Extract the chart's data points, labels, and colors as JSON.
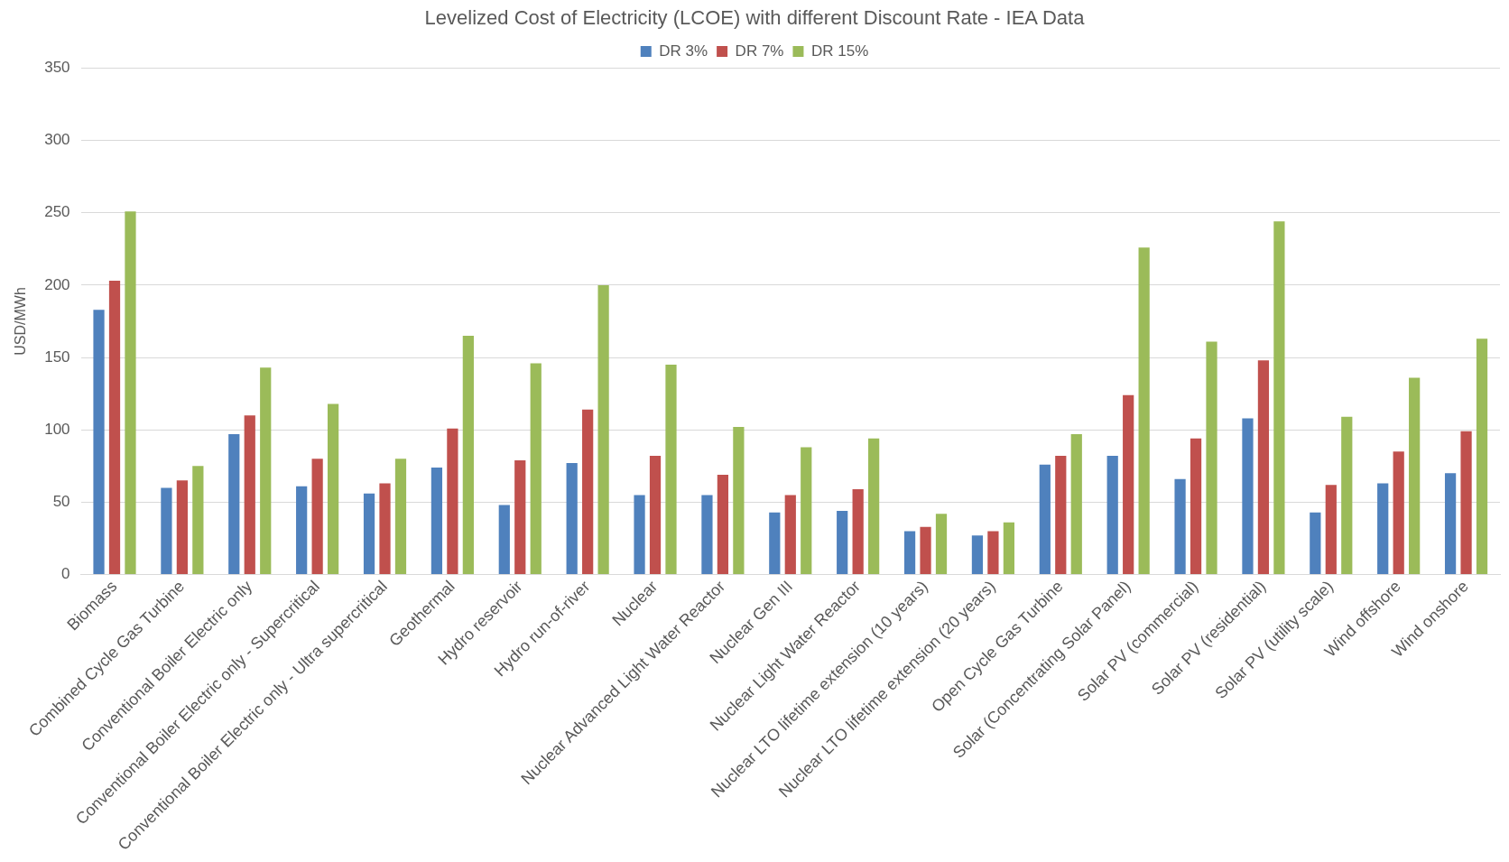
{
  "chart_data": {
    "type": "bar",
    "title": "Levelized Cost of Electricity (LCOE) with different Discount Rate - IEA Data",
    "ylabel": "USD/MWh",
    "categories": [
      "Biomass",
      "Combined Cycle Gas Turbine",
      "Conventional Boiler Electric only",
      "Conventional Boiler Electric only - Supercritical",
      "Conventional Boiler Electric only - Ultra supercritical",
      "Geothermal",
      "Hydro reservoir",
      "Hydro run-of-river",
      "Nuclear",
      "Nuclear Advanced Light Water Reactor",
      "Nuclear Gen III",
      "Nuclear Light Water Reactor",
      "Nuclear LTO lifetime extension (10 years)",
      "Nuclear LTO lifetime extension (20 years)",
      "Open Cycle Gas Turbine",
      "Solar (Concentrating Solar Panel)",
      "Solar PV (commercial)",
      "Solar PV (residential)",
      "Solar PV (utility scale)",
      "Wind offshore",
      "Wind onshore"
    ],
    "series": [
      {
        "name": "DR 3%",
        "color": "#4f81bd",
        "values": [
          183,
          60,
          97,
          61,
          56,
          74,
          48,
          77,
          55,
          55,
          43,
          44,
          30,
          27,
          76,
          82,
          66,
          108,
          43,
          63,
          70
        ]
      },
      {
        "name": "DR 7%",
        "color": "#c0504d",
        "values": [
          203,
          65,
          110,
          80,
          63,
          101,
          79,
          114,
          82,
          69,
          55,
          59,
          33,
          30,
          82,
          124,
          94,
          148,
          62,
          85,
          99
        ]
      },
      {
        "name": "DR 15%",
        "color": "#9bbb59",
        "values": [
          251,
          75,
          143,
          118,
          80,
          165,
          146,
          200,
          145,
          102,
          88,
          94,
          42,
          36,
          97,
          226,
          161,
          244,
          109,
          136,
          163
        ]
      }
    ],
    "ylim": [
      0,
      350
    ],
    "yticks": [
      0,
      50,
      100,
      150,
      200,
      250,
      300,
      350
    ],
    "grid": "y",
    "legend": "top"
  }
}
